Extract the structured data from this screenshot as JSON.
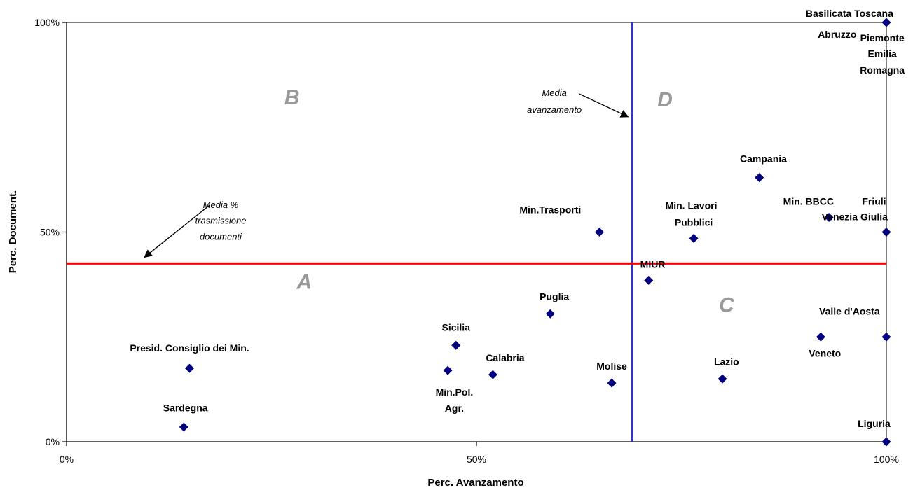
{
  "chart_data": {
    "type": "scatter",
    "title": "",
    "xlabel": "Perc. Avanzamento",
    "ylabel": "Perc. Document.",
    "xlim": [
      0,
      100
    ],
    "ylim": [
      0,
      100
    ],
    "x_ticks": [
      "0%",
      "50%",
      "100%"
    ],
    "y_ticks": [
      "0%",
      "50%",
      "100%"
    ],
    "grid": false,
    "legend": "none",
    "colors": {
      "point": "#000080",
      "media_avanzamento_line": "#3333CC",
      "media_documenti_line": "#FF0000",
      "quadrant_letter": "#999999"
    },
    "points": [
      {
        "label": "Presid. Consiglio dei Min.",
        "x": 15,
        "y": 17.5
      },
      {
        "label": "Sardegna",
        "x": 14.3,
        "y": 3.5
      },
      {
        "label": "Sicilia",
        "x": 47.5,
        "y": 23
      },
      {
        "label": "Min.Pol. Agr.",
        "x": 46.5,
        "y": 17
      },
      {
        "label": "Calabria",
        "x": 52,
        "y": 16
      },
      {
        "label": "Puglia",
        "x": 59,
        "y": 30.5
      },
      {
        "label": "Min.Trasporti",
        "x": 65,
        "y": 50
      },
      {
        "label": "Molise",
        "x": 66.5,
        "y": 14
      },
      {
        "label": "MIUR",
        "x": 71,
        "y": 38.5
      },
      {
        "label": "Min. Lavori Pubblici",
        "x": 76.5,
        "y": 48.5
      },
      {
        "label": "Lazio",
        "x": 80,
        "y": 15
      },
      {
        "label": "Campania",
        "x": 84.5,
        "y": 63
      },
      {
        "label": "Min. BBCC",
        "x": 93,
        "y": 53.5
      },
      {
        "label": "Veneto",
        "x": 92,
        "y": 25
      },
      {
        "label": "Valle d'Aosta",
        "x": 100,
        "y": 25
      },
      {
        "label": "Friuli Venezia Giulia",
        "x": 100,
        "y": 50
      },
      {
        "label": "Liguria",
        "x": 100,
        "y": 0
      },
      {
        "label": "Basilicata Toscana Abruzzo Piemonte Emilia Romagna",
        "x": 100,
        "y": 100
      }
    ],
    "labels": [
      {
        "text": "Presid. Consiglio dei Min.",
        "x": 15,
        "y": 21.5
      },
      {
        "text": "Sardegna",
        "x": 14.5,
        "y": 7.3
      },
      {
        "text": "Sicilia",
        "x": 47.5,
        "y": 26.5
      },
      {
        "text": "Min.Pol.",
        "x": 47.3,
        "y": 11
      },
      {
        "text": "Agr.",
        "x": 47.3,
        "y": 7.2
      },
      {
        "text": "Calabria",
        "x": 53.5,
        "y": 19.2
      },
      {
        "text": "Puglia",
        "x": 59.5,
        "y": 33.8
      },
      {
        "text": "Min.Trasporti",
        "x": 59,
        "y": 54.5
      },
      {
        "text": "Molise",
        "x": 66.5,
        "y": 17.2
      },
      {
        "text": "MIUR",
        "x": 71.5,
        "y": 41.5
      },
      {
        "text": "Min. Lavori",
        "x": 76.2,
        "y": 55.5
      },
      {
        "text": "Pubblici",
        "x": 76.5,
        "y": 51.5
      },
      {
        "text": "Lazio",
        "x": 80.5,
        "y": 18.3
      },
      {
        "text": "Campania",
        "x": 85,
        "y": 66.7
      },
      {
        "text": "Min. BBCC",
        "x": 90.5,
        "y": 56.5
      },
      {
        "text": "Venezia",
        "x": 94.3,
        "y": 52.8
      },
      {
        "text": "Friuli",
        "x": 98.5,
        "y": 56.5
      },
      {
        "text": "Giulia",
        "x": 98.5,
        "y": 52.8
      },
      {
        "text": "Valle d'Aosta",
        "x": 95.5,
        "y": 30.3
      },
      {
        "text": "Veneto",
        "x": 92.5,
        "y": 20.3
      },
      {
        "text": "Liguria",
        "x": 98.5,
        "y": 3.5
      },
      {
        "text": "Basilicata Toscana",
        "x": 95.5,
        "y": 101.3
      },
      {
        "text": "Abruzzo",
        "x": 94,
        "y": 96.3
      },
      {
        "text": "Piemonte",
        "x": 99.5,
        "y": 95.5
      },
      {
        "text": "Emilia",
        "x": 99.5,
        "y": 91.7
      },
      {
        "text": "Romagna",
        "x": 99.5,
        "y": 87.8
      }
    ],
    "reference_lines": {
      "media_avanzamento_x": 69,
      "media_documenti_y": 42.5
    },
    "quadrants": [
      {
        "letter": "A",
        "x": 29,
        "y": 36.5
      },
      {
        "letter": "B",
        "x": 27.5,
        "y": 80.5
      },
      {
        "letter": "C",
        "x": 80.5,
        "y": 31
      },
      {
        "letter": "D",
        "x": 73,
        "y": 80
      }
    ],
    "annotations": [
      {
        "lines": [
          "Media",
          "avanzamento"
        ],
        "text_x": 59.5,
        "text_y": [
          82.5,
          78.5
        ],
        "arrow_from": [
          62.5,
          83
        ],
        "arrow_to": [
          68.5,
          77.5
        ]
      },
      {
        "lines": [
          "Media %",
          "trasmissione",
          "documenti"
        ],
        "text_x": 18.8,
        "text_y": [
          55.8,
          52,
          48.2
        ],
        "arrow_from": [
          17.5,
          56.5
        ],
        "arrow_to": [
          9.5,
          44
        ]
      }
    ]
  }
}
